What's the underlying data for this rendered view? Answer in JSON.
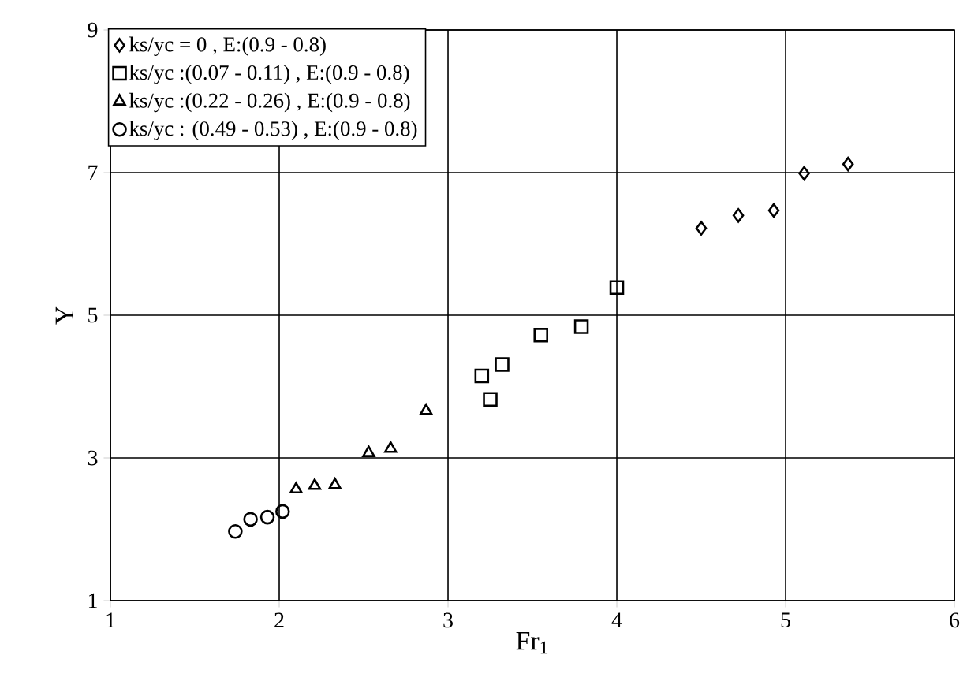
{
  "chart_data": {
    "type": "scatter",
    "xlabel": "Fr$_{1}$",
    "ylabel": "Y",
    "xlim": [
      1,
      6
    ],
    "xticks": [
      1,
      2,
      3,
      4,
      5,
      6
    ],
    "ylim": [
      1,
      9
    ],
    "yticks": [
      1,
      3,
      5,
      7,
      9
    ],
    "grid": true,
    "legend": "top left",
    "series": [
      {
        "name": "ks/yc = 0 , E:(0.9 - 0.8)",
        "color": "#000000",
        "marker": "diamond",
        "x": [
          4.5,
          4.72,
          4.93,
          5.11,
          5.37
        ],
        "values": [
          6.22,
          6.4,
          6.47,
          6.99,
          7.12
        ]
      },
      {
        "name": "ks/yc :(0.07 - 0.11) , E:(0.9 - 0.8)",
        "color": "#000000",
        "marker": "square",
        "x": [
          3.2,
          3.25,
          3.32,
          3.55,
          3.79,
          4.0
        ],
        "values": [
          4.15,
          3.82,
          4.31,
          4.72,
          4.84,
          5.39
        ]
      },
      {
        "name": "ks/yc :(0.22 - 0.26) , E:(0.9 - 0.8)",
        "color": "#000000",
        "marker": "triangle",
        "x": [
          2.1,
          2.21,
          2.33,
          2.53,
          2.66,
          2.87
        ],
        "values": [
          2.56,
          2.61,
          2.62,
          3.07,
          3.13,
          3.66
        ]
      },
      {
        "name": "ks/yc : (0.49 - 0.53) , E:(0.9 - 0.8)",
        "color": "#000000",
        "marker": "circle",
        "x": [
          1.74,
          1.83,
          1.93,
          2.02
        ],
        "values": [
          1.97,
          2.14,
          2.17,
          2.25
        ]
      }
    ]
  }
}
